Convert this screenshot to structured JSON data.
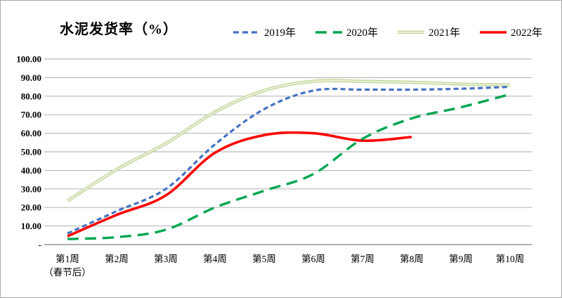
{
  "chart_data": {
    "type": "line",
    "title": "水泥发货率（%）",
    "xlabel": "",
    "ylabel": "",
    "ylim": [
      0,
      100
    ],
    "ytick_step": 10,
    "grid": true,
    "legend_position": "top",
    "ytick_labels": [
      "100.00",
      "90.00",
      "80.00",
      "70.00",
      "60.00",
      "50.00",
      "40.00",
      "30.00",
      "20.00",
      "10.00",
      "-"
    ],
    "categories": [
      {
        "label": "第1周",
        "sub": "（春节后）"
      },
      {
        "label": "第2周"
      },
      {
        "label": "第3周"
      },
      {
        "label": "第4周"
      },
      {
        "label": "第5周"
      },
      {
        "label": "第6周"
      },
      {
        "label": "第7周"
      },
      {
        "label": "第8周"
      },
      {
        "label": "第9周"
      },
      {
        "label": "第10周"
      }
    ],
    "series": [
      {
        "name": "2021年",
        "color": "#c3d69b",
        "inner_color": "#eef3e0",
        "style": "double",
        "values": [
          23.5,
          40.5,
          54.5,
          71.5,
          83,
          88,
          88,
          87.5,
          86.5,
          86
        ]
      },
      {
        "name": "2019年",
        "color": "#4472c4",
        "style": "dashed",
        "values": [
          6,
          18,
          30,
          54,
          73,
          83,
          83.5,
          83.5,
          84,
          85
        ]
      },
      {
        "name": "2022年",
        "color": "#ff0000",
        "style": "solid",
        "values": [
          4.5,
          16,
          26.5,
          49.5,
          59,
          60,
          56,
          58
        ]
      },
      {
        "name": "2020年",
        "color": "#00a651",
        "style": "long-dash",
        "values": [
          3,
          4,
          8,
          20,
          29,
          38,
          57,
          68,
          74,
          81
        ]
      }
    ],
    "legend_order": [
      "2019年",
      "2020年",
      "2021年",
      "2022年"
    ],
    "axis_color": "#7f7f7f",
    "grid_color": "#a6a6a6"
  }
}
